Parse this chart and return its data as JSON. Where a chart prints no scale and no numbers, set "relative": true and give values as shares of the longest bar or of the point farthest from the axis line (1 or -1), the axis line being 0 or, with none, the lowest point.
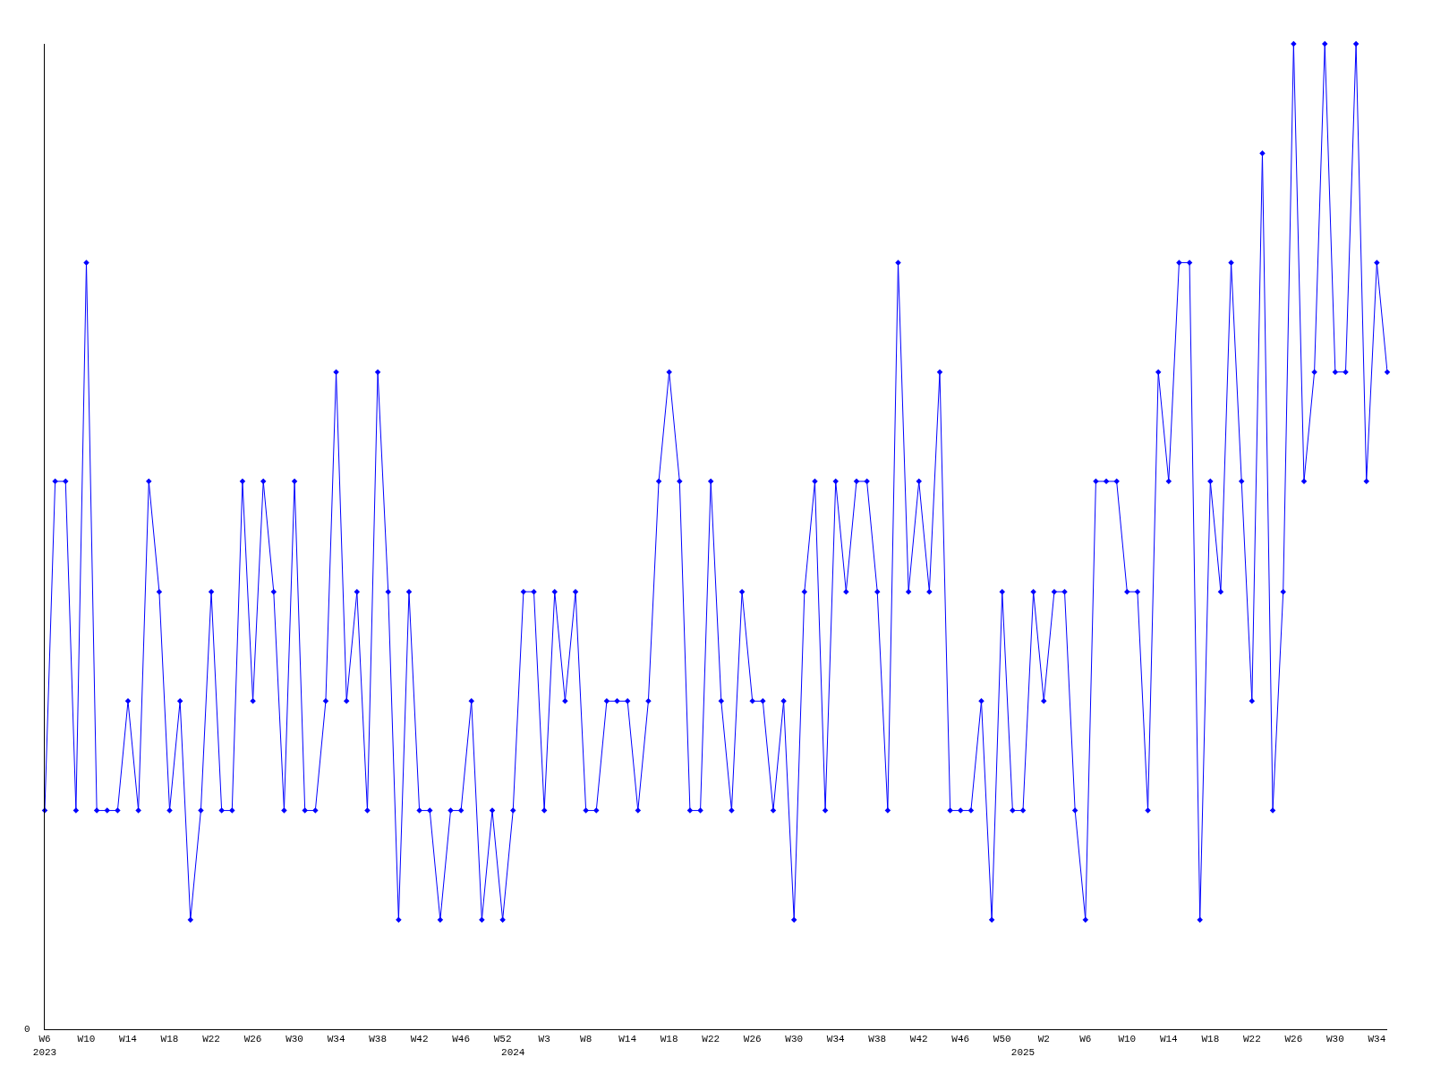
{
  "chart_data": {
    "type": "line",
    "relative": true,
    "color": "#0000ff",
    "marker": "diamond",
    "line_style": "solid",
    "grid": false,
    "annotations": [
      "0"
    ],
    "categories": [
      "W6\n2023",
      null,
      null,
      null,
      "W10",
      null,
      null,
      null,
      "W14",
      null,
      null,
      null,
      "W18",
      null,
      null,
      null,
      "W22",
      null,
      null,
      null,
      "W26",
      null,
      null,
      null,
      "W30",
      null,
      null,
      null,
      "W34",
      null,
      null,
      null,
      "W38",
      null,
      null,
      null,
      "W42",
      null,
      null,
      null,
      "W46",
      null,
      null,
      null,
      "W52",
      "\n2024",
      null,
      null,
      "W3",
      null,
      null,
      null,
      "W8",
      null,
      null,
      null,
      "W14",
      null,
      null,
      null,
      "W18",
      null,
      null,
      null,
      "W22",
      null,
      null,
      null,
      "W26",
      null,
      null,
      null,
      "W30",
      null,
      null,
      null,
      "W34",
      null,
      null,
      null,
      "W38",
      null,
      null,
      null,
      "W42",
      null,
      null,
      null,
      "W46",
      null,
      null,
      null,
      "W50",
      null,
      "\n2025",
      null,
      "W2",
      null,
      null,
      null,
      "W6",
      null,
      null,
      null,
      "W10",
      null,
      null,
      null,
      "W14",
      null,
      null,
      null,
      "W18",
      null,
      null,
      null,
      "W22",
      null,
      null,
      null,
      "W26",
      null,
      null,
      null,
      "W30",
      null,
      null,
      null,
      "W34",
      null
    ],
    "values": [
      0.222,
      0.556,
      0.556,
      0.222,
      0.778,
      0.222,
      0.222,
      0.222,
      0.333,
      0.222,
      0.556,
      0.444,
      0.222,
      0.333,
      0.111,
      0.222,
      0.444,
      0.222,
      0.222,
      0.556,
      0.333,
      0.556,
      0.444,
      0.222,
      0.556,
      0.222,
      0.222,
      0.333,
      0.667,
      0.333,
      0.444,
      0.222,
      0.667,
      0.444,
      0.111,
      0.444,
      0.222,
      0.222,
      0.111,
      0.222,
      0.222,
      0.333,
      0.111,
      0.222,
      0.111,
      0.222,
      0.444,
      0.444,
      0.222,
      0.444,
      0.333,
      0.444,
      0.222,
      0.222,
      0.333,
      0.333,
      0.333,
      0.222,
      0.333,
      0.556,
      0.667,
      0.556,
      0.222,
      0.222,
      0.556,
      0.333,
      0.222,
      0.444,
      0.333,
      0.333,
      0.222,
      0.333,
      0.111,
      0.444,
      0.556,
      0.222,
      0.556,
      0.444,
      0.556,
      0.556,
      0.444,
      0.222,
      0.778,
      0.444,
      0.556,
      0.444,
      0.667,
      0.222,
      0.222,
      0.222,
      0.333,
      0.111,
      0.444,
      0.222,
      0.222,
      0.444,
      0.333,
      0.444,
      0.444,
      0.222,
      0.111,
      0.556,
      0.556,
      0.556,
      0.444,
      0.444,
      0.222,
      0.667,
      0.556,
      0.778,
      0.778,
      0.111,
      0.556,
      0.444,
      0.778,
      0.556,
      0.333,
      0.889,
      0.222,
      0.444,
      1,
      0.556,
      0.667,
      1,
      0.667,
      0.667,
      1,
      0.556,
      0.778,
      0.667
    ]
  }
}
